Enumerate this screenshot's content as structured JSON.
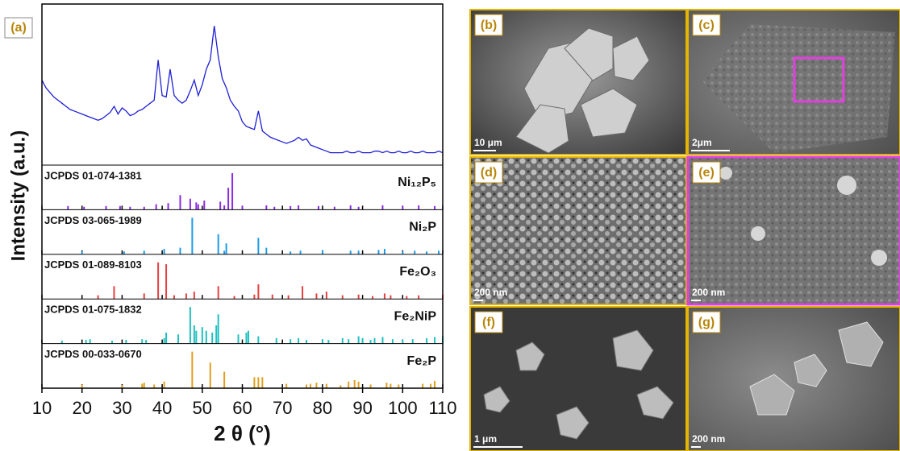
{
  "chart_data": {
    "type": "xrd",
    "panel_label": "(a)",
    "x_label": "2 θ (°)",
    "y_label": "Intensity (a.u.)",
    "xlim": [
      10,
      110
    ],
    "xticks": [
      10,
      20,
      30,
      40,
      50,
      60,
      70,
      80,
      90,
      100,
      110
    ],
    "ylim": [
      0,
      100
    ],
    "x": [
      10,
      11,
      12,
      13,
      14,
      15,
      16,
      17,
      18,
      19,
      20,
      21,
      22,
      23,
      24,
      25,
      26,
      27,
      28,
      29,
      30,
      31,
      32,
      33,
      34,
      35,
      36,
      37,
      38,
      39,
      40,
      41,
      42,
      43,
      44,
      45,
      46,
      47,
      48,
      49,
      50,
      51,
      52,
      53,
      54,
      55,
      56,
      57,
      58,
      59,
      60,
      61,
      62,
      63,
      64,
      65,
      66,
      67,
      68,
      69,
      70,
      71,
      72,
      73,
      74,
      75,
      76,
      77,
      78,
      79,
      80,
      81,
      82,
      83,
      84,
      85,
      86,
      87,
      88,
      89,
      90,
      91,
      92,
      93,
      94,
      95,
      96,
      97,
      98,
      99,
      100,
      101,
      102,
      103,
      104,
      105,
      106,
      107,
      108,
      109,
      110
    ],
    "series": [
      {
        "color": "#1f1fd6",
        "values": [
          55,
          50,
          47,
          44,
          42,
          40,
          38,
          36,
          35,
          34,
          33,
          32,
          31,
          30,
          29,
          30,
          32,
          34,
          38,
          33,
          37,
          35,
          32,
          33,
          35,
          36,
          38,
          40,
          42,
          68,
          45,
          44,
          62,
          45,
          42,
          40,
          42,
          48,
          55,
          45,
          52,
          62,
          68,
          90,
          70,
          56,
          50,
          42,
          38,
          35,
          28,
          25,
          24,
          23,
          35,
          22,
          20,
          18,
          17,
          16,
          15,
          14,
          15,
          16,
          18,
          16,
          17,
          13,
          12,
          11,
          10,
          9,
          8,
          8,
          8,
          8,
          9,
          8,
          8,
          9,
          8,
          8,
          8,
          9,
          9,
          8,
          9,
          8,
          8,
          9,
          8,
          8,
          9,
          8,
          8,
          9,
          8,
          8,
          8,
          9,
          8
        ]
      }
    ],
    "ref_ylim": [
      0,
      100
    ],
    "references": [
      {
        "code": "JCPDS 01-074-1381",
        "name": "Ni₁₂P₅",
        "color": "#8a2be2",
        "positions": [
          16.5,
          20.5,
          26,
          29.5,
          32,
          35.5,
          38.5,
          41.5,
          44.5,
          47,
          48.5,
          49,
          50.5,
          54.5,
          55.5,
          56.5,
          57.5,
          60,
          66,
          68,
          72,
          74,
          79,
          83,
          87,
          89,
          95,
          100,
          104,
          108
        ],
        "intensities": [
          10,
          8,
          10,
          10,
          8,
          8,
          15,
          18,
          40,
          30,
          20,
          15,
          25,
          22,
          12,
          60,
          100,
          10,
          12,
          8,
          10,
          12,
          10,
          8,
          12,
          8,
          12,
          10,
          12,
          10
        ]
      },
      {
        "code": "JCPDS 03-065-1989",
        "name": "Ni₂P",
        "color": "#1e9be6",
        "positions": [
          20,
          30.5,
          35.5,
          40.5,
          44.5,
          47.5,
          54,
          55.5,
          56,
          64,
          66,
          72,
          74.5,
          80,
          87,
          89,
          94,
          95.5,
          100,
          103,
          106,
          109
        ],
        "intensities": [
          8,
          8,
          10,
          15,
          18,
          100,
          55,
          10,
          30,
          45,
          18,
          8,
          10,
          12,
          10,
          10,
          12,
          15,
          8,
          10,
          8,
          10
        ]
      },
      {
        "code": "JCPDS 01-089-8103",
        "name": "Fe₂O₃",
        "color": "#e64040",
        "positions": [
          24,
          28,
          35.5,
          39,
          41,
          43,
          46,
          48,
          54,
          58,
          63,
          64,
          67.5,
          71.5,
          75,
          78.5,
          81,
          85,
          89,
          92.5,
          95.5,
          97,
          101,
          104,
          110
        ],
        "intensities": [
          10,
          35,
          15,
          100,
          95,
          10,
          15,
          20,
          35,
          8,
          12,
          40,
          12,
          10,
          35,
          15,
          20,
          10,
          12,
          8,
          15,
          10,
          8,
          10,
          12
        ]
      },
      {
        "code": "JCPDS 01-075-1832",
        "name": "Fe₂NiP",
        "color": "#20c0c0",
        "positions": [
          15,
          21,
          22,
          27.5,
          31,
          35,
          36,
          40.5,
          41,
          44,
          47,
          48,
          48.5,
          50,
          51,
          52.5,
          53.5,
          54,
          59,
          61,
          61.5,
          64,
          68.5,
          72,
          74,
          76,
          80,
          81.5,
          85,
          86.5,
          89,
          90,
          92,
          93,
          95,
          97.5,
          100,
          102.5,
          106,
          108,
          110
        ],
        "intensities": [
          8,
          10,
          12,
          8,
          10,
          12,
          10,
          15,
          30,
          25,
          100,
          50,
          35,
          45,
          35,
          30,
          50,
          80,
          25,
          30,
          35,
          20,
          15,
          12,
          15,
          10,
          12,
          10,
          15,
          12,
          20,
          15,
          10,
          15,
          18,
          12,
          10,
          12,
          15,
          18,
          20
        ]
      },
      {
        "code": "JCPDS 00-033-0670",
        "name": "Fe₂P",
        "color": "#e0a020",
        "positions": [
          20,
          30,
          35,
          35.5,
          38,
          40.5,
          47.5,
          52,
          55.5,
          63,
          64,
          65,
          71,
          76,
          77,
          78.5,
          81,
          84.5,
          86.5,
          88,
          89,
          92,
          96,
          97,
          99,
          105,
          107,
          108
        ],
        "intensities": [
          10,
          8,
          12,
          15,
          10,
          18,
          100,
          70,
          45,
          30,
          30,
          30,
          12,
          10,
          12,
          15,
          12,
          8,
          18,
          22,
          18,
          10,
          15,
          12,
          10,
          12,
          12,
          20
        ]
      }
    ]
  },
  "panels": [
    {
      "label": "(b)",
      "scale": "10 μm"
    },
    {
      "label": "(c)",
      "scale": "2μm"
    },
    {
      "label": "(d)",
      "scale": "200 nm"
    },
    {
      "label": "(e)",
      "scale": "200 nm"
    },
    {
      "label": "(f)",
      "scale": "1 μm"
    },
    {
      "label": "(g)",
      "scale": "200 nm"
    }
  ]
}
